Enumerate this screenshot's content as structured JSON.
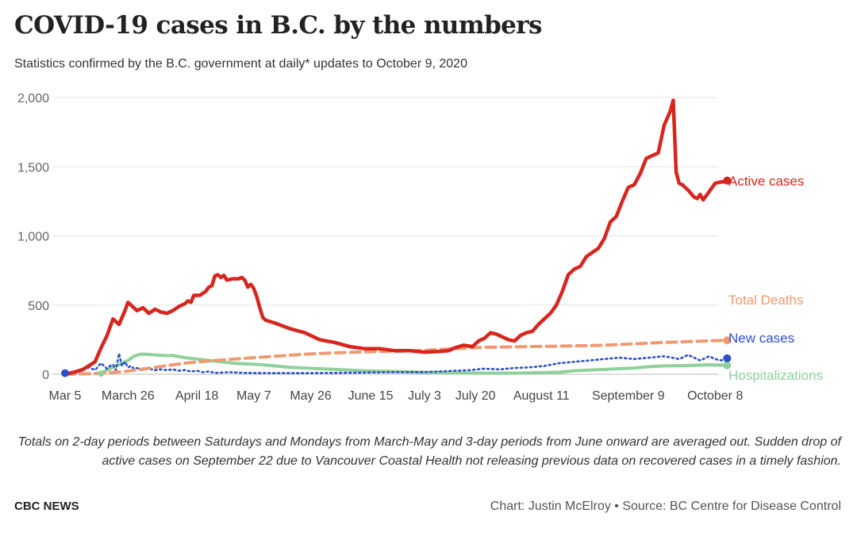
{
  "header": {
    "title": "COVID-19 cases in B.C. by the numbers",
    "subtitle": "Statistics confirmed by the B.C. government at daily* updates to October 9, 2020"
  },
  "footer": {
    "note": "Totals on 2-day periods between Saturdays and Mondays from March-May and 3-day periods from June onward are averaged out. Sudden drop of active cases on September 22 due to Vancouver Coastal Health not releasing previous data on recovered cases in a timely fashion.",
    "brand": "CBC NEWS",
    "credit": "Chart: Justin McElroy • Source: BC Centre for Disease Control"
  },
  "colors": {
    "active": "#d7261e",
    "deaths": "#f09a72",
    "new_cases": "#2b50c8",
    "hospitalizations": "#8fd19a",
    "grid": "#e3e3e3",
    "axis_text": "#666666"
  },
  "chart_data": {
    "type": "line",
    "title": "COVID-19 cases in B.C. by the numbers",
    "xlabel": "",
    "ylabel": "",
    "x_unit": "days since Mar 5, 2020",
    "xlim": [
      0,
      218
    ],
    "ylim": [
      0,
      2000
    ],
    "y_ticks": [
      0,
      500,
      1000,
      1500,
      2000
    ],
    "y_tick_labels": [
      "0",
      "500",
      "1,000",
      "1,500",
      "2,000"
    ],
    "x_ticks": [
      {
        "label": "Mar 5",
        "x": 0
      },
      {
        "label": "March 26",
        "x": 21
      },
      {
        "label": "April 18",
        "x": 44
      },
      {
        "label": "May 7",
        "x": 63
      },
      {
        "label": "May 26",
        "x": 82
      },
      {
        "label": "June 15",
        "x": 102
      },
      {
        "label": "July 3",
        "x": 120
      },
      {
        "label": "July 20",
        "x": 137
      },
      {
        "label": "August 11",
        "x": 159
      },
      {
        "label": "September 9",
        "x": 188
      },
      {
        "label": "October 8",
        "x": 217
      }
    ],
    "series": [
      {
        "name": "Active cases",
        "key": "active",
        "style": "solid",
        "end_label": "Active cases",
        "points": [
          [
            0,
            0
          ],
          [
            3,
            15
          ],
          [
            6,
            35
          ],
          [
            10,
            90
          ],
          [
            12,
            190
          ],
          [
            14,
            280
          ],
          [
            16,
            400
          ],
          [
            18,
            360
          ],
          [
            20,
            460
          ],
          [
            21,
            520
          ],
          [
            22,
            500
          ],
          [
            24,
            460
          ],
          [
            26,
            480
          ],
          [
            28,
            440
          ],
          [
            30,
            470
          ],
          [
            32,
            450
          ],
          [
            34,
            440
          ],
          [
            36,
            460
          ],
          [
            38,
            490
          ],
          [
            40,
            510
          ],
          [
            41,
            530
          ],
          [
            42,
            520
          ],
          [
            43,
            570
          ],
          [
            45,
            570
          ],
          [
            47,
            600
          ],
          [
            48,
            630
          ],
          [
            49,
            640
          ],
          [
            50,
            710
          ],
          [
            51,
            720
          ],
          [
            52,
            700
          ],
          [
            53,
            715
          ],
          [
            54,
            680
          ],
          [
            56,
            690
          ],
          [
            58,
            690
          ],
          [
            59,
            700
          ],
          [
            60,
            680
          ],
          [
            61,
            630
          ],
          [
            62,
            650
          ],
          [
            63,
            620
          ],
          [
            64,
            560
          ],
          [
            65,
            480
          ],
          [
            66,
            410
          ],
          [
            67,
            390
          ],
          [
            70,
            370
          ],
          [
            75,
            330
          ],
          [
            80,
            300
          ],
          [
            85,
            250
          ],
          [
            90,
            230
          ],
          [
            95,
            200
          ],
          [
            100,
            185
          ],
          [
            105,
            185
          ],
          [
            110,
            170
          ],
          [
            115,
            170
          ],
          [
            120,
            160
          ],
          [
            125,
            165
          ],
          [
            128,
            170
          ],
          [
            130,
            190
          ],
          [
            133,
            210
          ],
          [
            136,
            200
          ],
          [
            138,
            240
          ],
          [
            140,
            260
          ],
          [
            142,
            300
          ],
          [
            144,
            290
          ],
          [
            146,
            270
          ],
          [
            148,
            250
          ],
          [
            150,
            240
          ],
          [
            152,
            280
          ],
          [
            154,
            300
          ],
          [
            156,
            310
          ],
          [
            158,
            360
          ],
          [
            160,
            400
          ],
          [
            162,
            440
          ],
          [
            164,
            500
          ],
          [
            166,
            600
          ],
          [
            168,
            720
          ],
          [
            170,
            760
          ],
          [
            172,
            780
          ],
          [
            174,
            850
          ],
          [
            176,
            880
          ],
          [
            178,
            910
          ],
          [
            180,
            980
          ],
          [
            182,
            1100
          ],
          [
            184,
            1140
          ],
          [
            186,
            1250
          ],
          [
            188,
            1350
          ],
          [
            190,
            1370
          ],
          [
            192,
            1450
          ],
          [
            194,
            1560
          ],
          [
            196,
            1580
          ],
          [
            198,
            1600
          ],
          [
            200,
            1800
          ],
          [
            202,
            1900
          ],
          [
            203,
            1980
          ],
          [
            204,
            1460
          ],
          [
            205,
            1380
          ],
          [
            206,
            1370
          ],
          [
            208,
            1330
          ],
          [
            210,
            1280
          ],
          [
            211,
            1270
          ],
          [
            212,
            1300
          ],
          [
            213,
            1260
          ],
          [
            215,
            1320
          ],
          [
            217,
            1380
          ],
          [
            219,
            1390
          ],
          [
            220,
            1390
          ],
          [
            221,
            1400
          ]
        ],
        "end_value": 1400
      },
      {
        "name": "Total Deaths",
        "key": "deaths",
        "style": "dashed",
        "end_label": "Total Deaths",
        "points": [
          [
            0,
            0
          ],
          [
            10,
            5
          ],
          [
            20,
            20
          ],
          [
            30,
            50
          ],
          [
            40,
            80
          ],
          [
            50,
            100
          ],
          [
            60,
            115
          ],
          [
            70,
            130
          ],
          [
            80,
            145
          ],
          [
            90,
            155
          ],
          [
            100,
            162
          ],
          [
            110,
            166
          ],
          [
            120,
            172
          ],
          [
            130,
            185
          ],
          [
            140,
            195
          ],
          [
            150,
            198
          ],
          [
            160,
            202
          ],
          [
            170,
            205
          ],
          [
            180,
            210
          ],
          [
            190,
            220
          ],
          [
            200,
            230
          ],
          [
            210,
            238
          ],
          [
            221,
            245
          ]
        ],
        "end_value": 245
      },
      {
        "name": "New cases",
        "key": "new_cases",
        "style": "dotted",
        "end_label": "New cases",
        "points": [
          [
            0,
            10
          ],
          [
            4,
            10
          ],
          [
            8,
            50
          ],
          [
            10,
            30
          ],
          [
            12,
            80
          ],
          [
            14,
            40
          ],
          [
            15,
            60
          ],
          [
            16,
            70
          ],
          [
            17,
            30
          ],
          [
            18,
            150
          ],
          [
            19,
            60
          ],
          [
            20,
            90
          ],
          [
            21,
            50
          ],
          [
            22,
            60
          ],
          [
            23,
            40
          ],
          [
            24,
            45
          ],
          [
            26,
            30
          ],
          [
            28,
            40
          ],
          [
            30,
            30
          ],
          [
            32,
            35
          ],
          [
            34,
            30
          ],
          [
            36,
            35
          ],
          [
            38,
            25
          ],
          [
            40,
            30
          ],
          [
            42,
            20
          ],
          [
            44,
            25
          ],
          [
            46,
            15
          ],
          [
            48,
            20
          ],
          [
            50,
            10
          ],
          [
            55,
            15
          ],
          [
            60,
            10
          ],
          [
            70,
            8
          ],
          [
            80,
            8
          ],
          [
            90,
            10
          ],
          [
            100,
            12
          ],
          [
            110,
            15
          ],
          [
            120,
            15
          ],
          [
            125,
            20
          ],
          [
            130,
            25
          ],
          [
            135,
            30
          ],
          [
            140,
            40
          ],
          [
            145,
            35
          ],
          [
            150,
            45
          ],
          [
            155,
            50
          ],
          [
            160,
            60
          ],
          [
            165,
            80
          ],
          [
            170,
            90
          ],
          [
            175,
            100
          ],
          [
            180,
            110
          ],
          [
            185,
            120
          ],
          [
            190,
            110
          ],
          [
            195,
            120
          ],
          [
            200,
            130
          ],
          [
            205,
            110
          ],
          [
            208,
            140
          ],
          [
            210,
            120
          ],
          [
            212,
            100
          ],
          [
            215,
            130
          ],
          [
            217,
            110
          ],
          [
            219,
            100
          ],
          [
            221,
            115
          ]
        ],
        "end_value": 115
      },
      {
        "name": "Hospitalizations",
        "key": "hospitalizations",
        "style": "solid-light",
        "end_label": "Hospitalizations",
        "points": [
          [
            12,
            10
          ],
          [
            15,
            40
          ],
          [
            18,
            70
          ],
          [
            21,
            100
          ],
          [
            23,
            130
          ],
          [
            25,
            145
          ],
          [
            27,
            145
          ],
          [
            30,
            140
          ],
          [
            33,
            135
          ],
          [
            36,
            135
          ],
          [
            40,
            120
          ],
          [
            44,
            110
          ],
          [
            48,
            100
          ],
          [
            52,
            90
          ],
          [
            56,
            80
          ],
          [
            60,
            75
          ],
          [
            65,
            70
          ],
          [
            70,
            60
          ],
          [
            75,
            50
          ],
          [
            80,
            45
          ],
          [
            85,
            40
          ],
          [
            90,
            35
          ],
          [
            95,
            30
          ],
          [
            100,
            25
          ],
          [
            110,
            20
          ],
          [
            120,
            15
          ],
          [
            130,
            10
          ],
          [
            140,
            8
          ],
          [
            150,
            8
          ],
          [
            160,
            12
          ],
          [
            165,
            15
          ],
          [
            170,
            25
          ],
          [
            175,
            30
          ],
          [
            180,
            35
          ],
          [
            185,
            40
          ],
          [
            190,
            45
          ],
          [
            195,
            55
          ],
          [
            200,
            60
          ],
          [
            205,
            62
          ],
          [
            210,
            65
          ],
          [
            215,
            68
          ],
          [
            221,
            65
          ]
        ],
        "end_value": 65
      }
    ]
  }
}
